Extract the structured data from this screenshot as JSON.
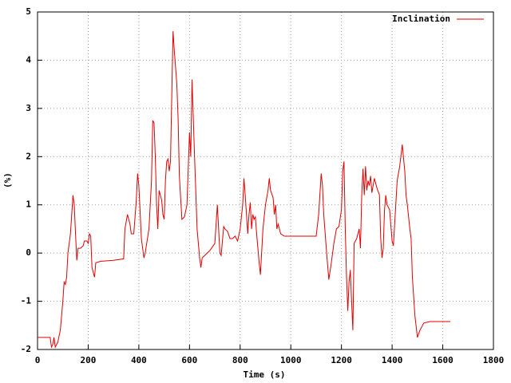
{
  "chart_data": {
    "type": "line",
    "x_label": "Time (s)",
    "y_label": "(%)",
    "xlim": [
      0,
      1800
    ],
    "xticks": [
      0,
      200,
      400,
      600,
      800,
      1000,
      1200,
      1400,
      1600,
      1800
    ],
    "ylim": [
      -2,
      5
    ],
    "yticks": [
      -2,
      -1,
      0,
      1,
      2,
      3,
      4,
      5
    ],
    "grid": true,
    "legend": "top-right",
    "x": [
      0,
      50,
      55,
      60,
      65,
      70,
      80,
      90,
      100,
      105,
      110,
      115,
      120,
      130,
      140,
      145,
      150,
      155,
      160,
      170,
      180,
      185,
      195,
      200,
      205,
      210,
      215,
      225,
      230,
      250,
      300,
      340,
      345,
      355,
      365,
      370,
      380,
      390,
      395,
      400,
      410,
      420,
      425,
      440,
      450,
      455,
      460,
      465,
      470,
      475,
      480,
      490,
      495,
      500,
      505,
      510,
      515,
      520,
      525,
      535,
      540,
      550,
      555,
      560,
      570,
      580,
      590,
      600,
      605,
      610,
      620,
      630,
      640,
      645,
      650,
      660,
      680,
      700,
      705,
      710,
      715,
      720,
      725,
      735,
      740,
      750,
      760,
      770,
      780,
      790,
      800,
      810,
      815,
      820,
      825,
      830,
      835,
      840,
      845,
      850,
      855,
      860,
      865,
      870,
      875,
      880,
      890,
      900,
      910,
      915,
      920,
      930,
      935,
      940,
      945,
      950,
      960,
      975,
      1000,
      1050,
      1100,
      1110,
      1120,
      1125,
      1130,
      1140,
      1150,
      1160,
      1170,
      1180,
      1190,
      1200,
      1205,
      1210,
      1215,
      1220,
      1225,
      1230,
      1235,
      1240,
      1245,
      1250,
      1260,
      1270,
      1275,
      1280,
      1285,
      1290,
      1295,
      1300,
      1305,
      1310,
      1315,
      1320,
      1325,
      1330,
      1340,
      1350,
      1355,
      1360,
      1365,
      1370,
      1375,
      1380,
      1390,
      1400,
      1405,
      1410,
      1420,
      1430,
      1440,
      1450,
      1455,
      1460,
      1470,
      1475,
      1480,
      1490,
      1500,
      1510,
      1525,
      1550,
      1630
    ],
    "series": [
      {
        "name": "Inclination",
        "color": "#e00000",
        "values": [
          -1.75,
          -1.75,
          -1.95,
          -1.9,
          -1.75,
          -1.95,
          -1.85,
          -1.6,
          -1.0,
          -0.6,
          -0.65,
          -0.5,
          0,
          0.4,
          1.2,
          1.0,
          0.4,
          -0.15,
          0.1,
          0.1,
          0.15,
          0.25,
          0.25,
          0.2,
          0.4,
          0.35,
          -0.3,
          -0.5,
          -0.2,
          -0.17,
          -0.15,
          -0.12,
          0.5,
          0.8,
          0.6,
          0.4,
          0.4,
          1.1,
          1.65,
          1.4,
          0.3,
          -0.1,
          0,
          0.5,
          1.5,
          2.75,
          2.7,
          2.0,
          1.0,
          0.5,
          1.3,
          1.1,
          0.8,
          0.7,
          1.5,
          1.9,
          1.95,
          1.7,
          1.9,
          4.6,
          4.2,
          3.5,
          2.8,
          1.6,
          0.7,
          0.75,
          1.0,
          2.5,
          2.0,
          3.6,
          2.0,
          0.5,
          -0.1,
          -0.3,
          -0.1,
          -0.05,
          0.05,
          0.2,
          0.6,
          1.0,
          0.5,
          0,
          -0.05,
          0.55,
          0.5,
          0.45,
          0.3,
          0.3,
          0.35,
          0.25,
          0.5,
          1.0,
          1.55,
          1.2,
          0.8,
          0.4,
          0.8,
          1.05,
          0.5,
          0.8,
          0.7,
          0.75,
          0.4,
          0.1,
          -0.2,
          -0.45,
          0.5,
          1.0,
          1.3,
          1.55,
          1.3,
          1.15,
          0.8,
          1.0,
          0.5,
          0.6,
          0.4,
          0.35,
          0.35,
          0.35,
          0.35,
          0.8,
          1.65,
          1.4,
          0.8,
          0.1,
          -0.55,
          -0.2,
          0.2,
          0.5,
          0.55,
          0.9,
          1.7,
          1.9,
          0.5,
          -0.5,
          -1.2,
          -0.6,
          -0.35,
          -1.0,
          -1.6,
          0.2,
          0.3,
          0.5,
          0.1,
          1.2,
          1.75,
          1.2,
          1.8,
          1.3,
          1.5,
          1.4,
          1.6,
          1.25,
          1.4,
          1.55,
          1.35,
          1.2,
          0.3,
          -0.1,
          0.1,
          0.9,
          1.2,
          1.0,
          0.9,
          0.25,
          0.15,
          0.6,
          1.5,
          1.8,
          2.25,
          1.7,
          1.2,
          1.0,
          0.5,
          0.3,
          -0.5,
          -1.3,
          -1.75,
          -1.6,
          -1.45,
          -1.42,
          -1.42
        ]
      }
    ]
  }
}
